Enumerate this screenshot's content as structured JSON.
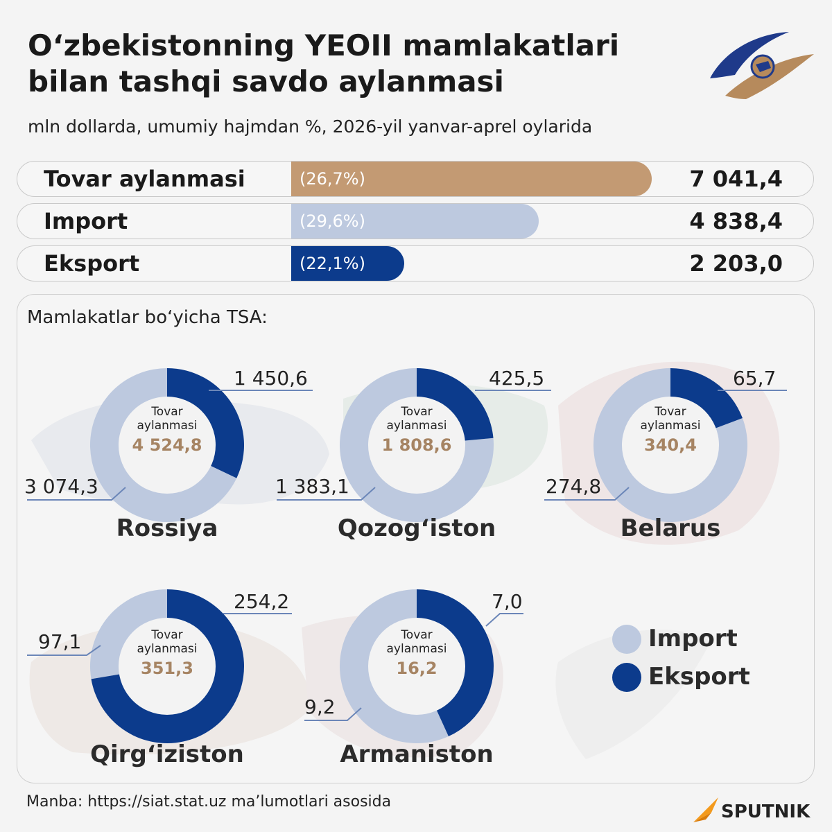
{
  "title": "O‘zbekistonning YEOII mamlakatlari bilan tashqi savdo aylanmasi",
  "subtitle": "mln dollarda, umumiy hajmdan %, 2026-yil yanvar-aprel oylarida",
  "colors": {
    "tovar": "#c39a73",
    "import": "#bdc9df",
    "eksport": "#0c3b8c",
    "center_value": "#a68463"
  },
  "summary": [
    {
      "label": "Tovar aylanmasi",
      "pct_text": "(26,7%)",
      "value_text": "7 041,4",
      "value": 7041.4,
      "share": 26.7,
      "color": "#c39a73"
    },
    {
      "label": "Import",
      "pct_text": "(29,6%)",
      "value_text": "4 838,4",
      "value": 4838.4,
      "share": 29.6,
      "color": "#bdc9df"
    },
    {
      "label": "Eksport",
      "pct_text": "(22,1%)",
      "value_text": "2 203,0",
      "value": 2203.0,
      "share": 22.1,
      "color": "#0c3b8c"
    }
  ],
  "panel_title": "Mamlakatlar bo‘yicha TSA:",
  "center_label": [
    "Tovar",
    "aylanmasi"
  ],
  "legend": {
    "import": "Import",
    "eksport": "Eksport"
  },
  "source": "Manba: https://siat.stat.uz ma’lumotlari asosida",
  "brand": "SPUTNIK",
  "chart_data": [
    {
      "type": "pie",
      "country": "Rossiya",
      "total_text": "4 524,8",
      "total": 4524.8,
      "series": [
        {
          "name": "Import",
          "value": 3074.3,
          "value_text": "3 074,3"
        },
        {
          "name": "Eksport",
          "value": 1450.6,
          "value_text": "1 450,6"
        }
      ]
    },
    {
      "type": "pie",
      "country": "Qozog‘iston",
      "total_text": "1 808,6",
      "total": 1808.6,
      "series": [
        {
          "name": "Import",
          "value": 1383.1,
          "value_text": "1 383,1"
        },
        {
          "name": "Eksport",
          "value": 425.5,
          "value_text": "425,5"
        }
      ]
    },
    {
      "type": "pie",
      "country": "Belarus",
      "total_text": "340,4",
      "total": 340.4,
      "series": [
        {
          "name": "Import",
          "value": 274.8,
          "value_text": "274,8"
        },
        {
          "name": "Eksport",
          "value": 65.7,
          "value_text": "65,7"
        }
      ]
    },
    {
      "type": "pie",
      "country": "Qirg‘iziston",
      "total_text": "351,3",
      "total": 351.3,
      "series": [
        {
          "name": "Import",
          "value": 97.1,
          "value_text": "97,1"
        },
        {
          "name": "Eksport",
          "value": 254.2,
          "value_text": "254,2"
        }
      ]
    },
    {
      "type": "pie",
      "country": "Armaniston",
      "total_text": "16,2",
      "total": 16.2,
      "series": [
        {
          "name": "Import",
          "value": 9.2,
          "value_text": "9,2"
        },
        {
          "name": "Eksport",
          "value": 7.0,
          "value_text": "7,0"
        }
      ]
    }
  ]
}
